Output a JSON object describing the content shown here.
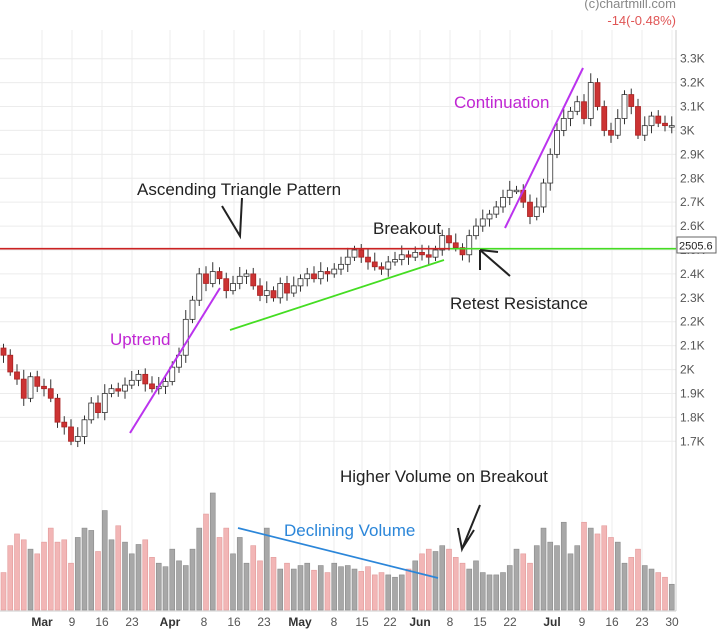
{
  "header": {
    "watermark": "(c)chartmill.com",
    "change": "-14(-0.48%)"
  },
  "price_tag": "2505.6",
  "colors": {
    "up_candle": "#ffffff",
    "down_candle": "#cc3333",
    "wick": "#333333",
    "volume_up": "#a8a8a8",
    "volume_down": "#f2b6b6",
    "resistance": "#cc2222",
    "support": "#44dd22",
    "trend": "#bb33ee",
    "volume_trend": "#2b86d9",
    "annotation_purple": "#c026d3",
    "annotation_blue": "#2b86d9",
    "annotation_dark": "#222222"
  },
  "annotations": {
    "uptrend": "Uptrend",
    "ascending_triangle": "Ascending Triangle Pattern",
    "breakout": "Breakout",
    "retest": "Retest Resistance",
    "continuation": "Continuation",
    "higher_volume": "Higher Volume on Breakout",
    "declining_volume": "Declining Volume"
  },
  "chart_data": {
    "type": "candlestick",
    "y_tick_labels": [
      "3.3K",
      "3.2K",
      "3.1K",
      "3K",
      "2.9K",
      "2.8K",
      "2.7K",
      "2.6K",
      "2.5K",
      "2.4K",
      "2.3K",
      "2.2K",
      "2.1K",
      "2K",
      "1.9K",
      "1.8K",
      "1.7K"
    ],
    "y_ticks": [
      3300,
      3200,
      3100,
      3000,
      2900,
      2800,
      2700,
      2600,
      2500,
      2400,
      2300,
      2200,
      2100,
      2000,
      1900,
      1800,
      1700
    ],
    "ylim": [
      1580,
      3420
    ],
    "x_tick_labels": [
      "Mar",
      "9",
      "16",
      "23",
      "Apr",
      "8",
      "16",
      "23",
      "May",
      "8",
      "15",
      "22",
      "Jun",
      "8",
      "15",
      "22",
      "Jul",
      "9",
      "16",
      "23",
      "30"
    ],
    "x_tick_major": [
      "Mar",
      "Apr",
      "May",
      "Jun",
      "Jul"
    ],
    "resistance_level": 2505.6,
    "closes": [
      2060,
      1990,
      1960,
      1880,
      1970,
      1930,
      1920,
      1880,
      1780,
      1760,
      1700,
      1720,
      1790,
      1860,
      1820,
      1900,
      1920,
      1910,
      1935,
      1955,
      1980,
      1940,
      1920,
      1930,
      1950,
      2010,
      2060,
      2210,
      2290,
      2400,
      2360,
      2410,
      2380,
      2330,
      2360,
      2390,
      2400,
      2350,
      2310,
      2330,
      2300,
      2360,
      2320,
      2350,
      2380,
      2400,
      2380,
      2410,
      2400,
      2420,
      2440,
      2470,
      2500,
      2470,
      2450,
      2430,
      2420,
      2450,
      2460,
      2480,
      2470,
      2490,
      2480,
      2470,
      2500,
      2560,
      2530,
      2510,
      2480,
      2560,
      2600,
      2630,
      2650,
      2680,
      2720,
      2750,
      2750,
      2700,
      2640,
      2680,
      2780,
      2900,
      3000,
      3050,
      3080,
      3120,
      3050,
      3200,
      3100,
      3000,
      2980,
      3050,
      3150,
      3100,
      2980,
      3020,
      3060,
      3030,
      3020,
      3020
    ],
    "volumes": [
      32,
      55,
      65,
      60,
      52,
      48,
      58,
      70,
      58,
      60,
      40,
      62,
      70,
      68,
      50,
      85,
      60,
      72,
      58,
      48,
      56,
      60,
      45,
      40,
      37,
      52,
      42,
      38,
      52,
      70,
      82,
      100,
      62,
      70,
      48,
      62,
      40,
      55,
      42,
      70,
      45,
      35,
      40,
      35,
      38,
      40,
      34,
      38,
      32,
      40,
      37,
      38,
      35,
      33,
      37,
      30,
      32,
      30,
      28,
      30,
      35,
      42,
      48,
      52,
      50,
      55,
      52,
      45,
      40,
      35,
      42,
      32,
      30,
      30,
      32,
      38,
      52,
      48,
      40,
      55,
      70,
      58,
      55,
      75,
      48,
      55,
      75,
      70,
      65,
      72,
      62,
      58,
      40,
      45,
      52,
      38,
      35,
      32,
      28,
      22
    ]
  }
}
